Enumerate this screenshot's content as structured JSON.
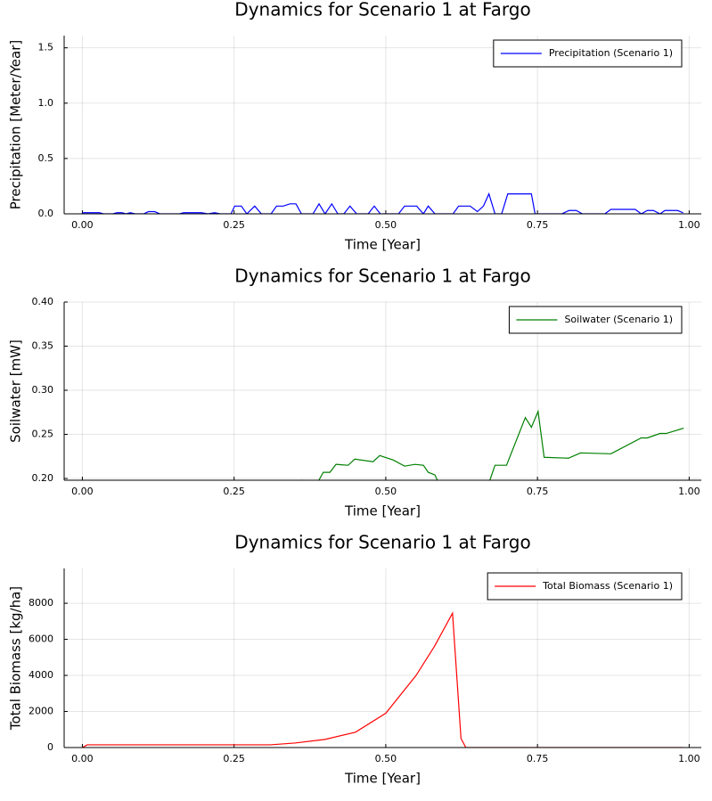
{
  "chart_data": [
    {
      "type": "line",
      "title": "Dynamics for Scenario 1 at Fargo",
      "x_label": "Time [Year]",
      "y_label": "Precipitation [Meter/Year]",
      "x": [
        0,
        0.028,
        0.035,
        0.05,
        0.057,
        0.065,
        0.072,
        0.079,
        0.087,
        0.101,
        0.109,
        0.119,
        0.128,
        0.16,
        0.167,
        0.196,
        0.207,
        0.218,
        0.227,
        0.245,
        0.251,
        0.262,
        0.271,
        0.284,
        0.295,
        0.311,
        0.32,
        0.331,
        0.342,
        0.352,
        0.361,
        0.38,
        0.39,
        0.4,
        0.411,
        0.421,
        0.431,
        0.441,
        0.452,
        0.471,
        0.481,
        0.491,
        0.521,
        0.531,
        0.551,
        0.562,
        0.57,
        0.581,
        0.611,
        0.62,
        0.639,
        0.651,
        0.661,
        0.67,
        0.68,
        0.691,
        0.701,
        0.74,
        0.746,
        0.79,
        0.802,
        0.814,
        0.824,
        0.861,
        0.871,
        0.911,
        0.921,
        0.931,
        0.941,
        0.952,
        0.96,
        0.981,
        0.99
      ],
      "series": [
        {
          "name": "Precipitation (Scenario 1)",
          "color": "#0000ff",
          "values": [
            0.01,
            0.01,
            0,
            0,
            0.01,
            0.01,
            0,
            0.01,
            0,
            0,
            0.02,
            0.02,
            0,
            0,
            0.01,
            0.01,
            0,
            0.01,
            0,
            0,
            0.07,
            0.07,
            0,
            0.07,
            0,
            0,
            0.07,
            0.07,
            0.09,
            0.09,
            0,
            0,
            0.09,
            0,
            0.09,
            0,
            0,
            0.07,
            0,
            0,
            0.07,
            0,
            0,
            0.07,
            0.07,
            0,
            0.07,
            0,
            0,
            0.07,
            0.07,
            0.02,
            0.07,
            0.18,
            0,
            0,
            0.18,
            0.18,
            0,
            0,
            0.03,
            0.03,
            0,
            0,
            0.04,
            0.04,
            0,
            0.03,
            0.03,
            0,
            0.03,
            0.03,
            0.01
          ]
        }
      ],
      "xlim": [
        -0.03,
        1.02
      ],
      "ylim": [
        0,
        1.61
      ],
      "xticks": [
        {
          "value": 0,
          "label": "0.00"
        },
        {
          "value": 0.25,
          "label": "0.25"
        },
        {
          "value": 0.5,
          "label": "0.50"
        },
        {
          "value": 0.75,
          "label": "0.75"
        },
        {
          "value": 1,
          "label": "1.00"
        }
      ],
      "yticks": [
        {
          "value": 0,
          "label": "0.0"
        },
        0.5,
        {
          "value": 1,
          "label": "1.0"
        },
        1.5
      ],
      "grid": true,
      "legend": "upper right"
    },
    {
      "type": "line",
      "title": "Dynamics for Scenario 1 at Fargo",
      "x_label": "Time [Year]",
      "y_label": "Soilwater [mW]",
      "x": [
        0,
        0.35,
        0.361,
        0.389,
        0.397,
        0.408,
        0.418,
        0.438,
        0.449,
        0.479,
        0.49,
        0.512,
        0.531,
        0.548,
        0.562,
        0.57,
        0.581,
        0.587,
        0.6,
        0.66,
        0.67,
        0.68,
        0.699,
        0.73,
        0.74,
        0.751,
        0.761,
        0.801,
        0.821,
        0.871,
        0.921,
        0.931,
        0.952,
        0.962,
        0.991
      ],
      "series": [
        {
          "name": "Soilwater (Scenario 1)",
          "color": "#008000",
          "values": [
            0.19,
            0.19,
            0.198,
            0.197,
            0.207,
            0.207,
            0.216,
            0.215,
            0.222,
            0.219,
            0.226,
            0.221,
            0.214,
            0.216,
            0.215,
            0.207,
            0.204,
            0.195,
            0.19,
            0.19,
            0.195,
            0.215,
            0.215,
            0.269,
            0.258,
            0.276,
            0.224,
            0.223,
            0.229,
            0.228,
            0.246,
            0.246,
            0.251,
            0.251,
            0.257
          ]
        }
      ],
      "xlim": [
        -0.03,
        1.02
      ],
      "ylim": [
        0.198,
        0.4
      ],
      "xticks": [
        {
          "value": 0,
          "label": "0.00"
        },
        {
          "value": 0.25,
          "label": "0.25"
        },
        {
          "value": 0.5,
          "label": "0.50"
        },
        {
          "value": 0.75,
          "label": "0.75"
        },
        {
          "value": 1,
          "label": "1.00"
        }
      ],
      "yticks": [
        {
          "value": 0.2,
          "label": "0.20"
        },
        0.25,
        {
          "value": 0.3,
          "label": "0.30"
        },
        0.35,
        {
          "value": 0.4,
          "label": "0.40"
        }
      ],
      "grid": true,
      "legend": "upper right"
    },
    {
      "type": "line",
      "title": "Dynamics for Scenario 1 at Fargo",
      "x_label": "Time [Year]",
      "y_label": "Total Biomass [kg/ha]",
      "x": [
        0,
        0.008,
        0.1,
        0.2,
        0.31,
        0.35,
        0.4,
        0.45,
        0.5,
        0.55,
        0.58,
        0.61,
        0.624,
        0.632,
        0.7,
        0.8,
        0.9,
        0.99
      ],
      "series": [
        {
          "name": "Total Biomass (Scenario 1)",
          "color": "#ff0000",
          "values": [
            0,
            150,
            150,
            150,
            150,
            250,
            450,
            850,
            1900,
            4000,
            5600,
            7450,
            500,
            0,
            0,
            0,
            0,
            0
          ]
        }
      ],
      "xlim": [
        -0.03,
        1.02
      ],
      "ylim": [
        0,
        9930
      ],
      "xticks": [
        {
          "value": 0,
          "label": "0.00"
        },
        {
          "value": 0.25,
          "label": "0.25"
        },
        {
          "value": 0.5,
          "label": "0.50"
        },
        {
          "value": 0.75,
          "label": "0.75"
        },
        {
          "value": 1,
          "label": "1.00"
        }
      ],
      "yticks": [
        0,
        2000,
        4000,
        6000,
        8000
      ],
      "grid": true,
      "legend": "upper right"
    }
  ]
}
